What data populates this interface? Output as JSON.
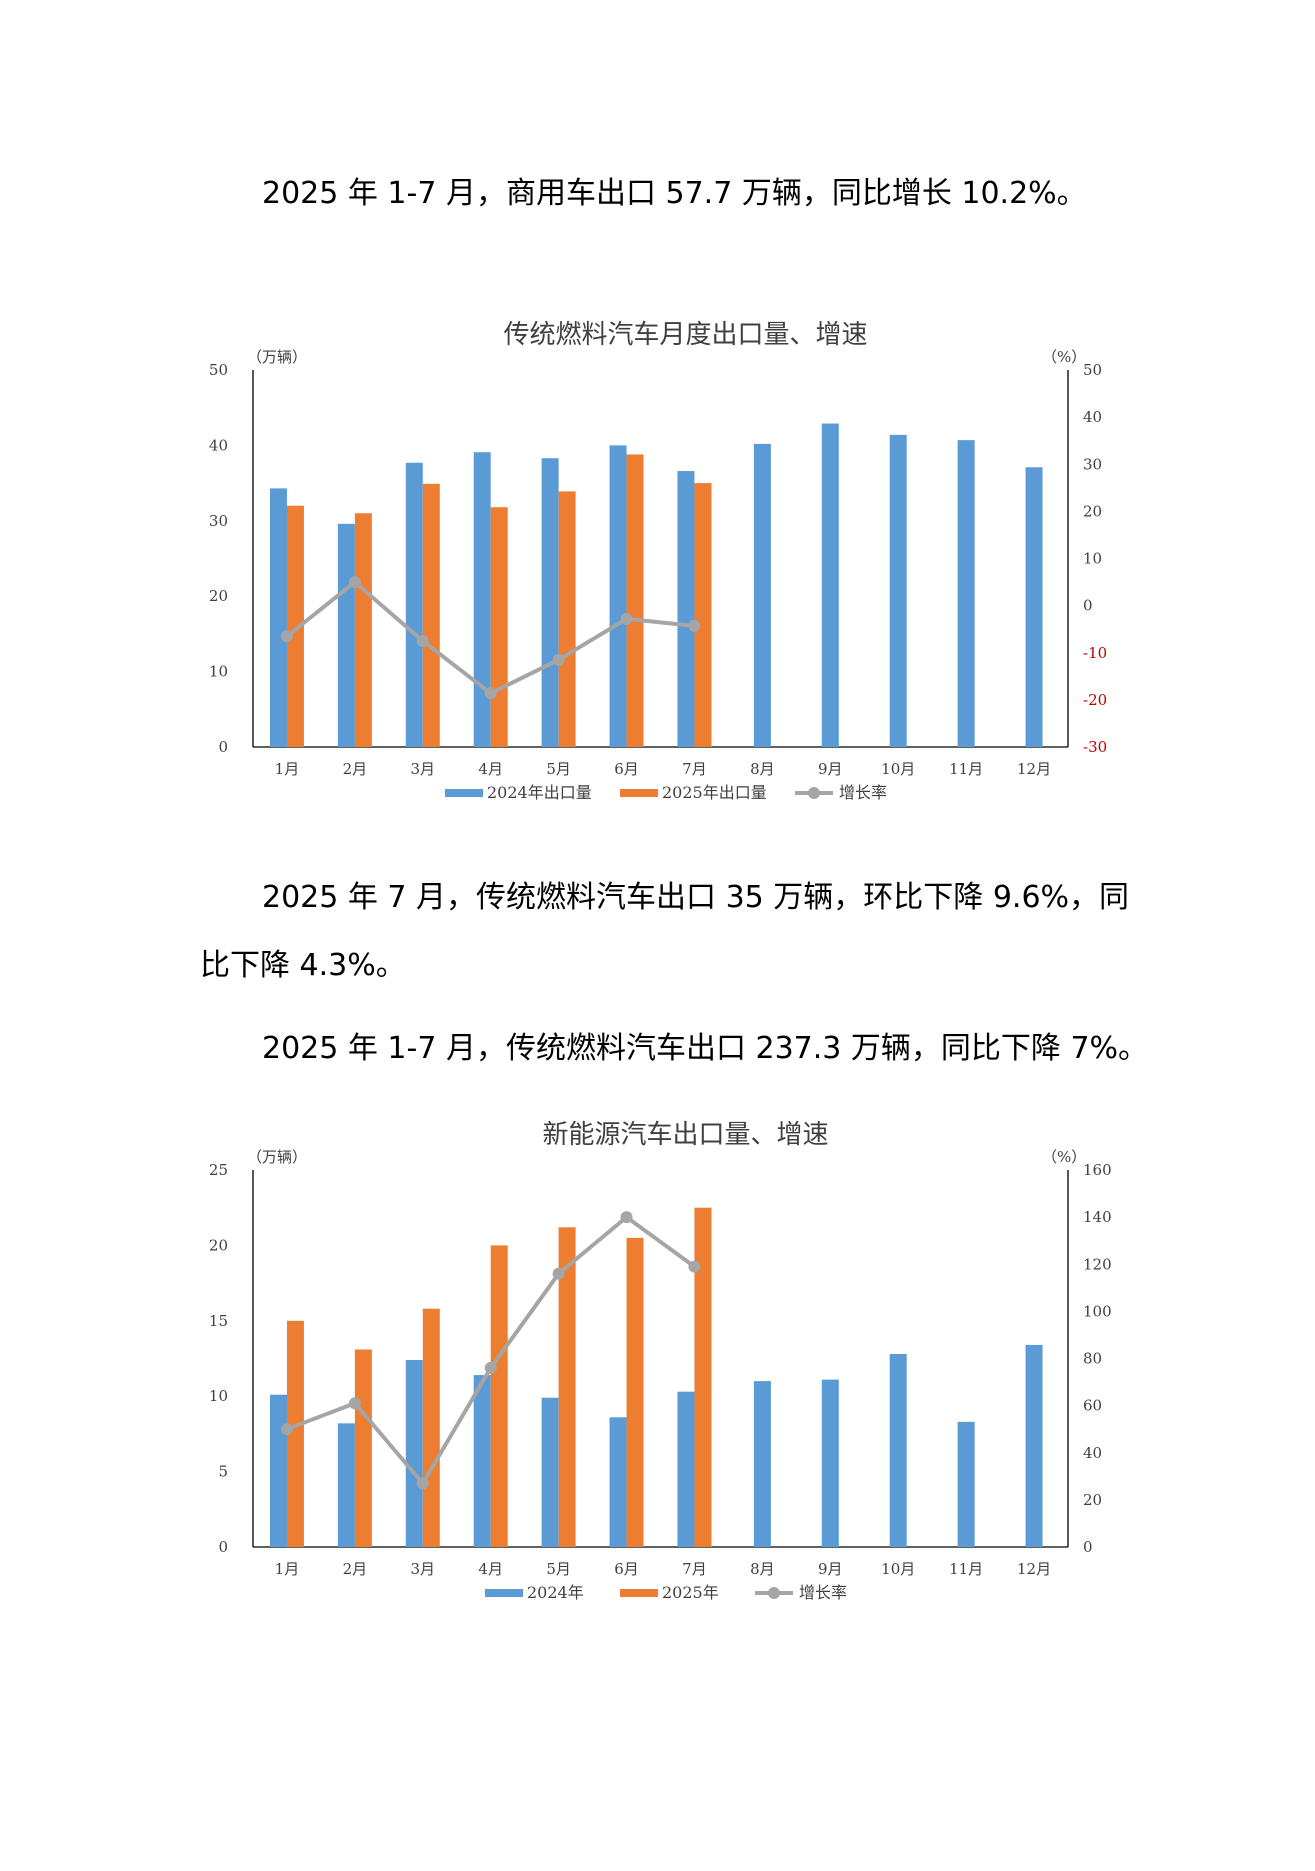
{
  "paragraphs": {
    "p1": "2025 年 1-7 月，商用车出口 57.7 万辆，同比增长 10.2%。",
    "p2_line1": "2025 年 7 月，传统燃料汽车出口 35 万辆，环比下降 9.6%，同",
    "p2_line2": "比下降 4.3%。",
    "p3": "2025 年 1-7 月，传统燃料汽车出口 237.3 万辆，同比下降 7%。"
  },
  "colors": {
    "series_2024": "#5B9BD5",
    "series_2025": "#ED7D31",
    "growth_line": "#A5A5A5",
    "negative_tick": "#C00000"
  },
  "chart_data": [
    {
      "type": "bar",
      "title": "传统燃料汽车月度出口量、增速",
      "left_unit": "（万辆）",
      "right_unit": "（%）",
      "categories": [
        "1月",
        "2月",
        "3月",
        "4月",
        "5月",
        "6月",
        "7月",
        "8月",
        "9月",
        "10月",
        "11月",
        "12月"
      ],
      "y_left": {
        "min": 0,
        "max": 50,
        "ticks": [
          0,
          10,
          20,
          30,
          40,
          50
        ]
      },
      "y_right": {
        "min": -30,
        "max": 50,
        "ticks": [
          -30,
          -20,
          -10,
          0,
          10,
          20,
          30,
          40,
          50
        ]
      },
      "series": [
        {
          "name": "2024年出口量",
          "type": "bar",
          "axis": "left",
          "values": [
            34.3,
            29.6,
            37.7,
            39.1,
            38.3,
            40.0,
            36.6,
            40.2,
            42.9,
            41.4,
            40.7,
            37.1
          ]
        },
        {
          "name": "2025年出口量",
          "type": "bar",
          "axis": "left",
          "values": [
            32.0,
            31.0,
            34.9,
            31.8,
            33.9,
            38.8,
            35.0,
            null,
            null,
            null,
            null,
            null
          ]
        },
        {
          "name": "增长率",
          "type": "line",
          "axis": "right",
          "values": [
            -6.5,
            5.0,
            -7.5,
            -18.6,
            -11.5,
            -2.8,
            -4.3,
            null,
            null,
            null,
            null,
            null
          ]
        }
      ],
      "legend_position": "bottom"
    },
    {
      "type": "bar",
      "title": "新能源汽车出口量、增速",
      "left_unit": "（万辆）",
      "right_unit": "（%）",
      "categories": [
        "1月",
        "2月",
        "3月",
        "4月",
        "5月",
        "6月",
        "7月",
        "8月",
        "9月",
        "10月",
        "11月",
        "12月"
      ],
      "y_left": {
        "min": 0,
        "max": 25,
        "ticks": [
          0,
          5,
          10,
          15,
          20,
          25
        ]
      },
      "y_right": {
        "min": 0,
        "max": 160,
        "ticks": [
          0,
          20,
          40,
          60,
          80,
          100,
          120,
          140,
          160
        ]
      },
      "series": [
        {
          "name": "2024年",
          "type": "bar",
          "axis": "left",
          "values": [
            10.1,
            8.2,
            12.4,
            11.4,
            9.9,
            8.6,
            10.3,
            11.0,
            11.1,
            12.8,
            8.3,
            13.4
          ]
        },
        {
          "name": "2025年",
          "type": "bar",
          "axis": "left",
          "values": [
            15.0,
            13.1,
            15.8,
            20.0,
            21.2,
            20.5,
            22.5,
            null,
            null,
            null,
            null,
            null
          ]
        },
        {
          "name": "增长率",
          "type": "line",
          "axis": "right",
          "values": [
            50,
            61,
            27,
            76,
            116,
            140,
            119,
            null,
            null,
            null,
            null,
            null
          ]
        }
      ],
      "legend_position": "bottom"
    }
  ]
}
